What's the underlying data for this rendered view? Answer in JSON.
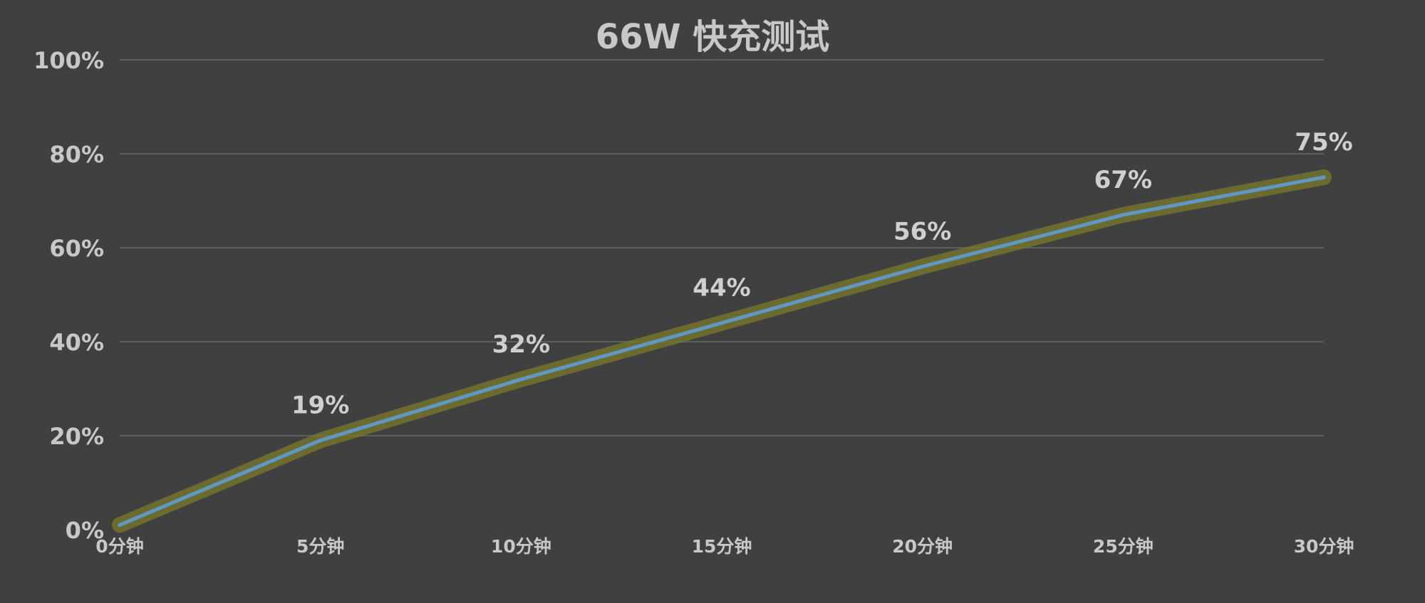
{
  "chart_data": {
    "type": "line",
    "title": "66W 快充测试",
    "xlabel": "",
    "ylabel": "",
    "categories": [
      "0分钟",
      "5分钟",
      "10分钟",
      "15分钟",
      "20分钟",
      "25分钟",
      "30分钟"
    ],
    "series": [
      {
        "values": [
          1,
          19,
          32,
          44,
          56,
          67,
          75
        ]
      }
    ],
    "data_labels": [
      "",
      "19%",
      "32%",
      "44%",
      "56%",
      "67%",
      "75%"
    ],
    "ylim": [
      0,
      100
    ],
    "yticks": [
      "0%",
      "20%",
      "40%",
      "60%",
      "80%",
      "100%"
    ],
    "grid": true,
    "legend": "none",
    "colors": {
      "background": "#404040",
      "line": "#5f98c4",
      "glow": "#7a7a2a",
      "text": "#c8c8c8",
      "grid": "#5e5e5e"
    }
  }
}
